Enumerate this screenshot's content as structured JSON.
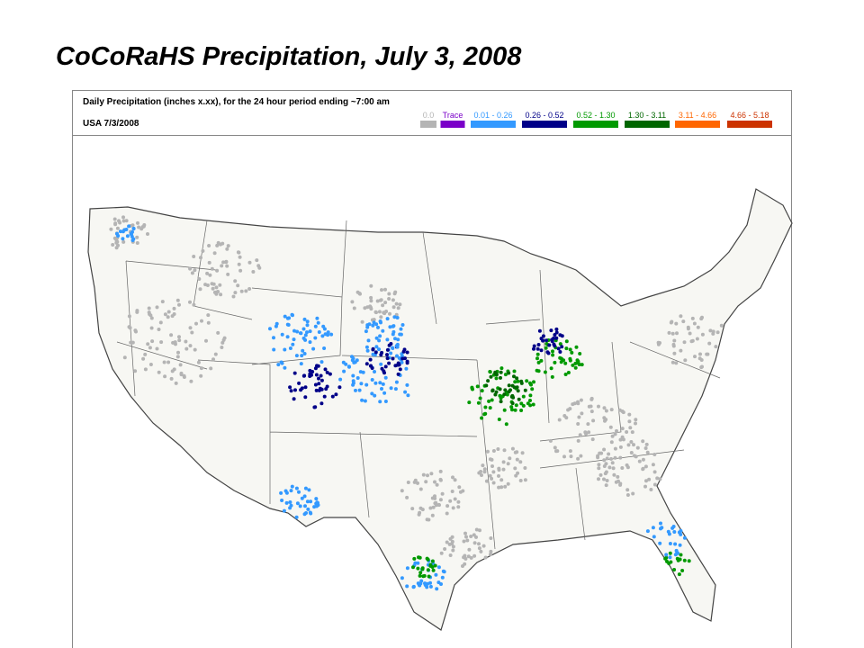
{
  "title": "CoCoRaHS Precipitation, July 3, 2008",
  "map": {
    "header": "Daily Precipitation (inches  x.xx),  for the 24 hour period ending ~7:00 am",
    "region_date": "USA 7/3/2008",
    "legend": [
      {
        "label": "0.0",
        "color": "#b4b4b4"
      },
      {
        "label": "Trace",
        "color": "#7a00c8"
      },
      {
        "label": "0.01 - 0.26",
        "color": "#3399ff"
      },
      {
        "label": "0.26 - 0.52",
        "color": "#000088"
      },
      {
        "label": "0.52 - 1.30",
        "color": "#009900"
      },
      {
        "label": "1.30 - 3.11",
        "color": "#006600"
      },
      {
        "label": "3.11 - 4.66",
        "color": "#ff6600"
      },
      {
        "label": "4.66 - 5.18",
        "color": "#cc3300"
      }
    ]
  }
}
